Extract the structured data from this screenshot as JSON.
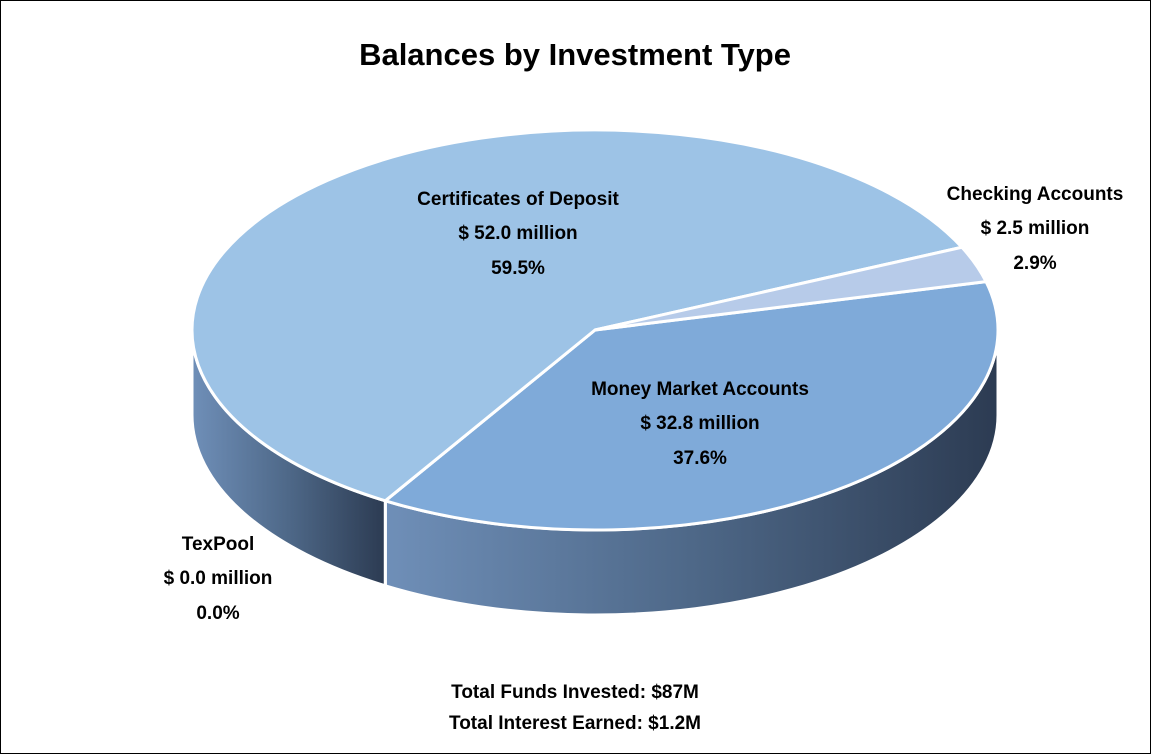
{
  "chart_data": {
    "type": "pie3d",
    "title": "Balances by Investment Type",
    "categories": [
      "Money Market Accounts",
      "TexPool",
      "Certificates of Deposit",
      "Checking Accounts"
    ],
    "values": [
      32.8,
      0.0,
      52.0,
      2.5
    ],
    "value_labels": [
      "$ 32.8 million",
      "$ 0.0 million",
      "$ 52.0 million",
      "$ 2.5 million"
    ],
    "percentages": [
      37.6,
      0.0,
      59.5,
      2.9
    ],
    "percentage_labels": [
      "37.6%",
      "0.0%",
      "59.5%",
      "2.9%"
    ],
    "colors": [
      "#7faad9",
      "#8ba8c8",
      "#9dc3e6",
      "#b7cbe9"
    ],
    "annotations": [
      "Total Funds Invested: $87M",
      "Total Interest Earned: $1.2M"
    ]
  }
}
